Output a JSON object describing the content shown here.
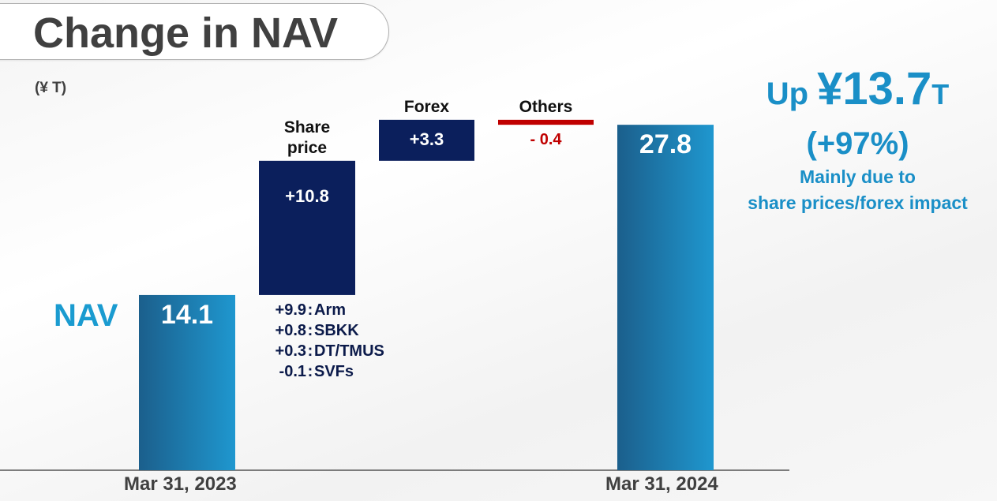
{
  "title": "Change in NAV",
  "unit_label": "(¥ T)",
  "nav_label": "NAV",
  "summary": {
    "prefix": "Up ",
    "amount": "¥13.7",
    "unit": "T",
    "percent": "(+97%)",
    "note_line1": "Mainly due to",
    "note_line2": "share prices/forex impact"
  },
  "share_price_breakdown": [
    {
      "value": "+9.9",
      "name": "Arm"
    },
    {
      "value": "+0.8",
      "name": "SBKK"
    },
    {
      "value": "+0.3",
      "name": "DT/TMUS"
    },
    {
      "value": "-0.1",
      "name": "SVFs"
    }
  ],
  "colors": {
    "nav_bar_dark": "#1b5f8c",
    "nav_bar_light": "#1f97cf",
    "increase_bar": "#0b1f5c",
    "decrease_bar": "#c00000",
    "accent_text": "#1a8fc7"
  },
  "chart_data": {
    "type": "bar",
    "subtype": "waterfall",
    "title": "Change in NAV",
    "unit": "(¥ T)",
    "categories": [
      "Mar 31, 2023",
      "Share price",
      "Forex",
      "Others",
      "Mar 31, 2024"
    ],
    "category_labels": [
      "Mar 31, 2023",
      "Share\nprice",
      "Forex",
      "Others",
      "Mar 31, 2024"
    ],
    "values": [
      14.1,
      10.8,
      3.3,
      -0.4,
      27.8
    ],
    "kinds": [
      "total",
      "delta",
      "delta",
      "delta",
      "total"
    ],
    "data_labels": [
      "14.1",
      "+10.8",
      "+3.3",
      "- 0.4",
      "27.8"
    ],
    "ylim": [
      0,
      30
    ],
    "grid": false,
    "legend": "none"
  }
}
